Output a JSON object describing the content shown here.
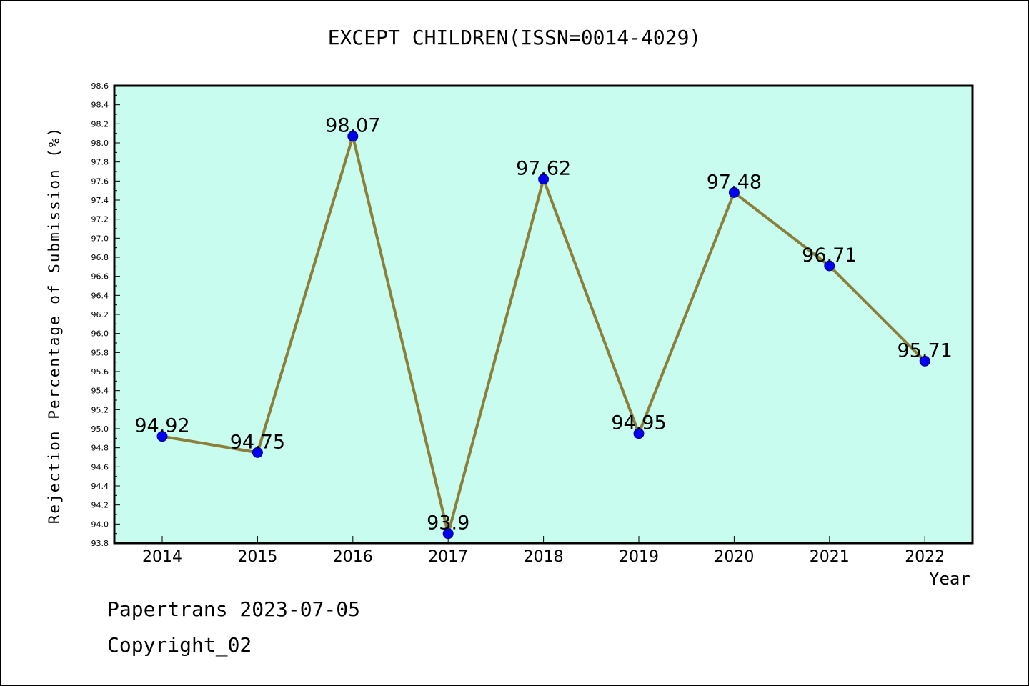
{
  "chart_data": {
    "type": "line",
    "title": "EXCEPT CHILDREN(ISSN=0014-4029)",
    "xlabel": "Year",
    "ylabel": "Rejection Percentage of Submission (%)",
    "categories": [
      "2014",
      "2015",
      "2016",
      "2017",
      "2018",
      "2019",
      "2020",
      "2021",
      "2022"
    ],
    "series": [
      {
        "values": [
          94.92,
          94.75,
          98.07,
          93.9,
          97.62,
          94.95,
          97.48,
          96.71,
          95.71
        ],
        "data_labels": [
          "94.92",
          "94.75",
          "98.07",
          "93.9",
          "97.62",
          "94.95",
          "97.48",
          "96.71",
          "95.71"
        ]
      }
    ],
    "ylim": [
      93.8,
      98.6
    ],
    "yticks": [
      "93.8",
      "94.0",
      "94.2",
      "94.4",
      "94.6",
      "94.8",
      "95.0",
      "95.2",
      "95.4",
      "95.6",
      "95.8",
      "96.0",
      "96.2",
      "96.4",
      "96.6",
      "96.8",
      "97.0",
      "97.2",
      "97.4",
      "97.6",
      "97.8",
      "98.0",
      "98.2",
      "98.4",
      "98.6"
    ],
    "grid": false,
    "legend": "none",
    "colors": {
      "plot_background": "#c8fcee",
      "line": "#8b7f3a",
      "marker": "#0000ee"
    }
  },
  "footer": {
    "line1": "Papertrans 2023-07-05",
    "line2": "Copyright_02"
  }
}
